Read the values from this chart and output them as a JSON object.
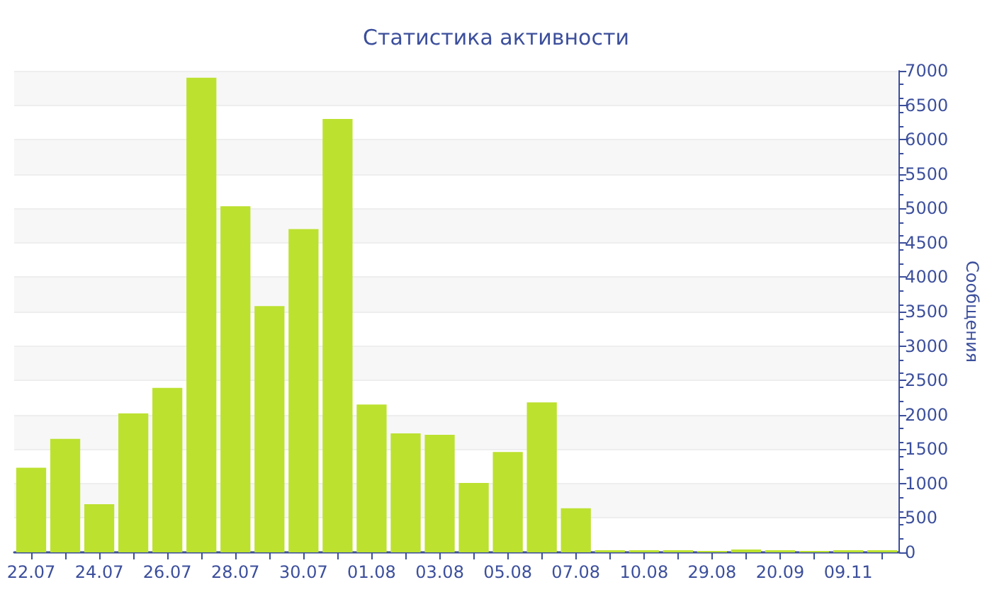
{
  "chart_data": {
    "type": "bar",
    "title": "Статистика активности",
    "ylabel": "Сообщения",
    "categories": [
      "22.07",
      null,
      "24.07",
      null,
      "26.07",
      null,
      "28.07",
      null,
      "30.07",
      null,
      "01.08",
      null,
      "03.08",
      null,
      "05.08",
      null,
      "07.08",
      null,
      "10.08",
      null,
      "29.08",
      null,
      "20.09",
      null,
      "09.11",
      null
    ],
    "values": [
      1230,
      1650,
      700,
      2020,
      2390,
      6900,
      5030,
      3580,
      4700,
      6300,
      2150,
      1730,
      1710,
      1010,
      1460,
      2180,
      640,
      30,
      30,
      30,
      20,
      40,
      30,
      20,
      30,
      30
    ],
    "color": "#bce12f",
    "ylim": [
      0,
      7000
    ],
    "yticks": [
      0,
      500,
      1000,
      1500,
      2000,
      2500,
      3000,
      3500,
      4000,
      4500,
      5000,
      5500,
      6000,
      6500,
      7000
    ],
    "grid": "y"
  }
}
